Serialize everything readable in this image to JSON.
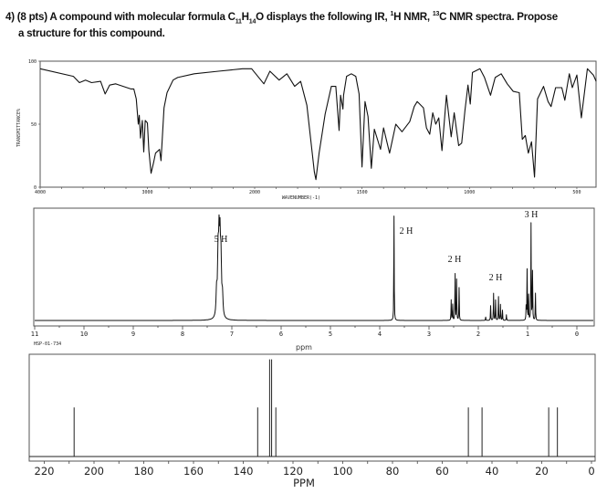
{
  "question": {
    "number": "4)",
    "points": "(8 pts)",
    "text_a": "A compound with molecular formula C",
    "sub_c": "11",
    "text_b": "H",
    "sub_h": "14",
    "text_c": "O displays the following IR, ",
    "sup_1h": "1",
    "text_d": "H NMR, ",
    "sup_13c": "13",
    "text_e": "C NMR spectra. Propose",
    "line2": "a structure for this compound."
  },
  "chart_data": [
    {
      "type": "line",
      "name": "IR spectrum",
      "xlabel": "WAVENUMBER(-1)",
      "ylabel": "TRANSMITTANCE%",
      "xlim": [
        4000,
        410
      ],
      "scale_change_at": 2000,
      "ylim": [
        0,
        100
      ],
      "x_ticks": [
        "4000",
        "3000",
        "2000",
        "1500",
        "1000",
        "500"
      ],
      "y_ticks": [
        "100",
        "50",
        "0"
      ],
      "points": [
        [
          4000,
          94
        ],
        [
          3690,
          88
        ],
        [
          3634,
          83
        ],
        [
          3577,
          85
        ],
        [
          3521,
          83
        ],
        [
          3437,
          84
        ],
        [
          3394,
          74
        ],
        [
          3352,
          81
        ],
        [
          3296,
          82
        ],
        [
          3155,
          78
        ],
        [
          3127,
          78
        ],
        [
          3104,
          70
        ],
        [
          3085,
          50
        ],
        [
          3076,
          57
        ],
        [
          3065,
          39
        ],
        [
          3048,
          53
        ],
        [
          3034,
          28
        ],
        [
          3020,
          53
        ],
        [
          3000,
          51
        ],
        [
          2986,
          29
        ],
        [
          2966,
          11
        ],
        [
          2944,
          19
        ],
        [
          2924,
          27
        ],
        [
          2887,
          30
        ],
        [
          2873,
          21
        ],
        [
          2845,
          63
        ],
        [
          2817,
          75
        ],
        [
          2761,
          85
        ],
        [
          2718,
          87
        ],
        [
          2563,
          90
        ],
        [
          2338,
          92
        ],
        [
          2113,
          94
        ],
        [
          2028,
          94
        ],
        [
          1957,
          82
        ],
        [
          1929,
          92
        ],
        [
          1886,
          85
        ],
        [
          1850,
          90
        ],
        [
          1814,
          80
        ],
        [
          1786,
          84
        ],
        [
          1757,
          65
        ],
        [
          1722,
          12
        ],
        [
          1715,
          6
        ],
        [
          1700,
          27
        ],
        [
          1672,
          58
        ],
        [
          1643,
          80
        ],
        [
          1622,
          80
        ],
        [
          1607,
          45
        ],
        [
          1600,
          73
        ],
        [
          1589,
          62
        ],
        [
          1586,
          73
        ],
        [
          1572,
          88
        ],
        [
          1550,
          90
        ],
        [
          1529,
          88
        ],
        [
          1514,
          74
        ],
        [
          1500,
          16
        ],
        [
          1486,
          68
        ],
        [
          1472,
          56
        ],
        [
          1457,
          15
        ],
        [
          1443,
          46
        ],
        [
          1414,
          30
        ],
        [
          1400,
          47
        ],
        [
          1372,
          27
        ],
        [
          1343,
          50
        ],
        [
          1314,
          44
        ],
        [
          1278,
          52
        ],
        [
          1257,
          64
        ],
        [
          1243,
          68
        ],
        [
          1214,
          63
        ],
        [
          1200,
          47
        ],
        [
          1185,
          42
        ],
        [
          1171,
          59
        ],
        [
          1157,
          50
        ],
        [
          1143,
          55
        ],
        [
          1128,
          29
        ],
        [
          1107,
          73
        ],
        [
          1085,
          40
        ],
        [
          1071,
          59
        ],
        [
          1050,
          33
        ],
        [
          1036,
          35
        ],
        [
          1021,
          61
        ],
        [
          1007,
          81
        ],
        [
          996,
          66
        ],
        [
          986,
          91
        ],
        [
          951,
          94
        ],
        [
          930,
          87
        ],
        [
          902,
          73
        ],
        [
          880,
          87
        ],
        [
          852,
          90
        ],
        [
          824,
          82
        ],
        [
          796,
          76
        ],
        [
          768,
          75
        ],
        [
          754,
          38
        ],
        [
          740,
          41
        ],
        [
          726,
          27
        ],
        [
          711,
          36
        ],
        [
          697,
          8
        ],
        [
          683,
          70
        ],
        [
          655,
          80
        ],
        [
          634,
          68
        ],
        [
          620,
          64
        ],
        [
          599,
          79
        ],
        [
          570,
          79
        ],
        [
          556,
          69
        ],
        [
          535,
          90
        ],
        [
          521,
          79
        ],
        [
          500,
          89
        ],
        [
          479,
          55
        ],
        [
          451,
          94
        ],
        [
          423,
          89
        ],
        [
          410,
          84
        ]
      ]
    },
    {
      "type": "line",
      "name": "1H NMR spectrum",
      "xlabel": "ppm",
      "sample_id": "HSP-01-734",
      "xlim": [
        11.0,
        -0.35
      ],
      "x_ticks": [
        "11",
        "10",
        "9",
        "8",
        "7",
        "6",
        "5",
        "4",
        "3",
        "2",
        "1",
        "0"
      ],
      "multiplets": [
        {
          "label": "5 H",
          "center": 7.25,
          "linewidth_ppm": 0.012,
          "lines": [
            [
              7.31,
              0.22
            ],
            [
              7.28,
              0.5
            ],
            [
              7.26,
              0.6
            ],
            [
              7.24,
              0.58
            ],
            [
              7.22,
              0.45
            ],
            [
              7.19,
              0.18
            ]
          ]
        },
        {
          "label": "2 H",
          "center": 3.71,
          "linewidth_ppm": 0.004,
          "lines": [
            [
              3.71,
              0.93
            ]
          ]
        },
        {
          "label": "2 H",
          "center": 2.47,
          "linewidth_ppm": 0.004,
          "lines": [
            [
              2.55,
              0.18
            ],
            [
              2.52,
              0.14
            ],
            [
              2.47,
              0.41
            ],
            [
              2.44,
              0.36
            ],
            [
              2.39,
              0.29
            ]
          ]
        },
        {
          "label": "2 H",
          "center": 1.65,
          "linewidth_ppm": 0.004,
          "lines": [
            [
              1.85,
              0.03
            ],
            [
              1.75,
              0.13
            ],
            [
              1.69,
              0.24
            ],
            [
              1.65,
              0.18
            ],
            [
              1.59,
              0.21
            ],
            [
              1.55,
              0.14
            ],
            [
              1.51,
              0.09
            ],
            [
              1.43,
              0.05
            ]
          ]
        },
        {
          "label": "3 H",
          "center": 0.93,
          "linewidth_ppm": 0.004,
          "lines": [
            [
              1.03,
              0.12
            ],
            [
              1.01,
              0.45
            ],
            [
              0.98,
              0.22
            ],
            [
              0.93,
              0.86
            ],
            [
              0.9,
              0.43
            ],
            [
              0.84,
              0.24
            ]
          ]
        }
      ]
    },
    {
      "type": "bar",
      "name": "13C NMR spectrum",
      "xlabel": "PPM",
      "xlim": [
        226,
        -1
      ],
      "x_ticks": [
        "220",
        "200",
        "180",
        "160",
        "140",
        "120",
        "100",
        "80",
        "60",
        "40",
        "20",
        "0"
      ],
      "peaks": [
        [
          208,
          0.48
        ],
        [
          134.2,
          0.48
        ],
        [
          129.4,
          0.95
        ],
        [
          128.6,
          0.95
        ],
        [
          126.9,
          0.48
        ],
        [
          49.5,
          0.48
        ],
        [
          44.0,
          0.48
        ],
        [
          17.2,
          0.48
        ],
        [
          13.7,
          0.48
        ]
      ]
    }
  ]
}
